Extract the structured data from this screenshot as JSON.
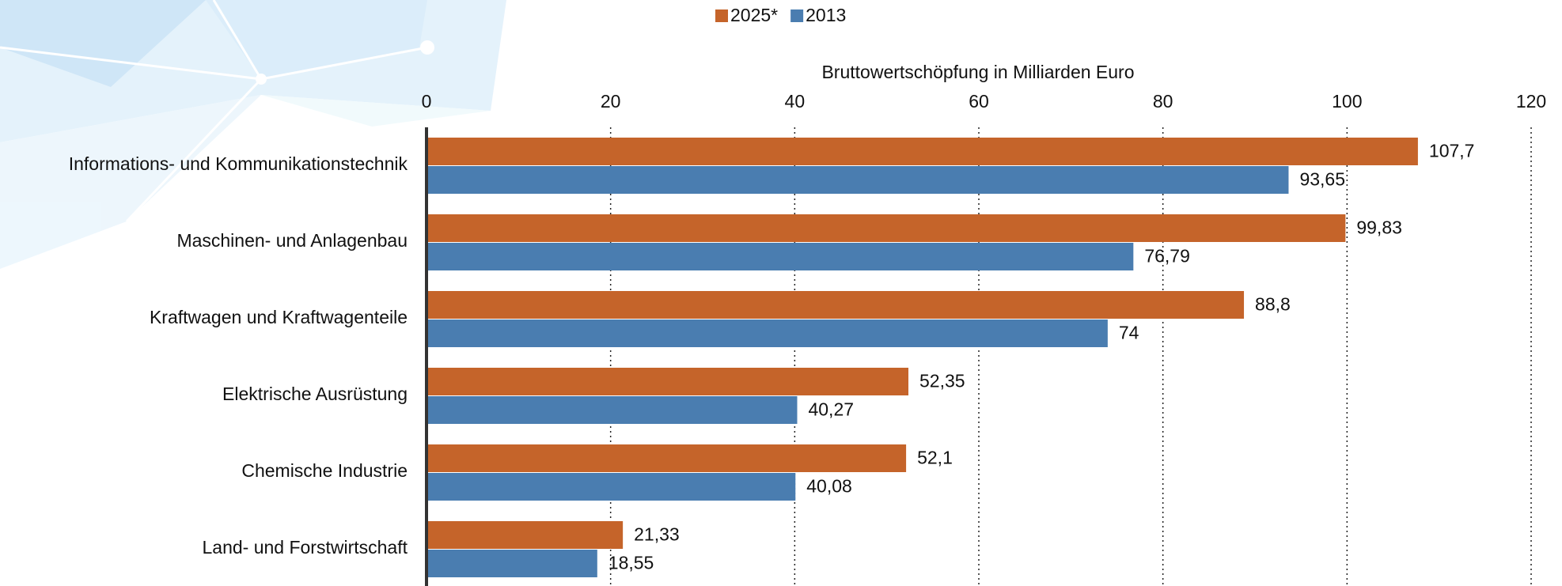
{
  "chart_data": {
    "type": "bar",
    "orientation": "horizontal",
    "x_label": "Bruttowertschöpfung in Milliarden Euro",
    "categories": [
      "Informations- und Kommunikationstechnik",
      "Maschinen- und Anlagenbau",
      "Kraftwagen und Kraftwagenteile",
      "Elektrische Ausrüstung",
      "Chemische Industrie",
      "Land- und Forstwirtschaft"
    ],
    "series": [
      {
        "name": "2025*",
        "color": "#c5642a",
        "values": [
          107.7,
          99.83,
          88.8,
          52.35,
          52.1,
          21.33
        ],
        "value_labels": [
          "107,7",
          "99,83",
          "88,8",
          "52,35",
          "52,1",
          "21,33"
        ]
      },
      {
        "name": "2013",
        "color": "#4a7db0",
        "values": [
          93.65,
          76.79,
          74,
          40.27,
          40.08,
          18.55
        ],
        "value_labels": [
          "93,65",
          "76,79",
          "74",
          "40,27",
          "40,08",
          "18,55"
        ]
      }
    ],
    "xlim": [
      0,
      120
    ],
    "xticks": [
      0,
      20,
      40,
      60,
      80,
      100,
      120
    ],
    "grid": true,
    "legend": "top"
  }
}
